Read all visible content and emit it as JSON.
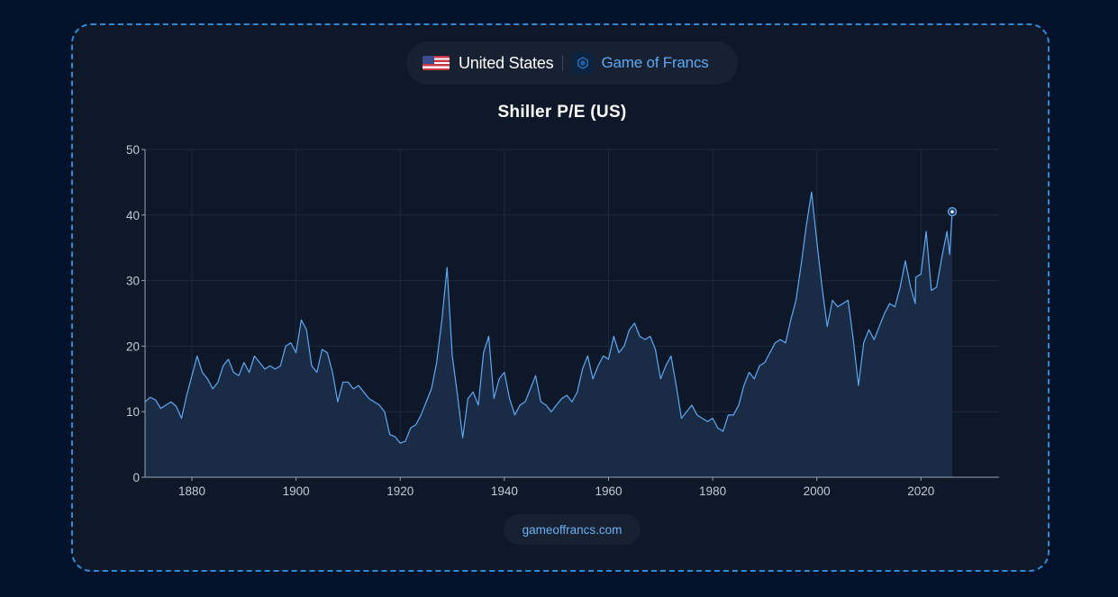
{
  "header": {
    "country": "United States",
    "brand": "Game of Francs"
  },
  "footer": {
    "site": "gameoffrancs.com"
  },
  "colors": {
    "line": "#5ea8f4",
    "area": "#1b2c48",
    "grid": "#1d2a3d",
    "axis": "#9aa4b2",
    "background": "#0e1828"
  },
  "chart_data": {
    "type": "area",
    "title": "Shiller P/E (US)",
    "xlabel": "",
    "ylabel": "",
    "xlim": [
      1871,
      2035
    ],
    "ylim": [
      0,
      50
    ],
    "x_ticks": [
      1880,
      1900,
      1920,
      1940,
      1960,
      1980,
      2000,
      2020
    ],
    "y_ticks": [
      0,
      10,
      20,
      30,
      40,
      50
    ],
    "grid": true,
    "legend": "none",
    "series": [
      {
        "x": [
          1871,
          1872,
          1873,
          1874,
          1875,
          1876,
          1877,
          1878,
          1879,
          1880,
          1881,
          1882,
          1883,
          1884,
          1885,
          1886,
          1887,
          1888,
          1889,
          1890,
          1891,
          1892,
          1893,
          1894,
          1895,
          1896,
          1897,
          1898,
          1899,
          1900,
          1901,
          1902,
          1903,
          1904,
          1905,
          1906,
          1907,
          1908,
          1909,
          1910,
          1911,
          1912,
          1913,
          1914,
          1915,
          1916,
          1917,
          1918,
          1919,
          1920,
          1921,
          1922,
          1923,
          1924,
          1925,
          1926,
          1927,
          1928,
          1929,
          1929.7,
          1930,
          1931,
          1932,
          1932.5,
          1933,
          1934,
          1935,
          1936,
          1937,
          1938,
          1939,
          1940,
          1941,
          1942,
          1943,
          1944,
          1945,
          1946,
          1947,
          1948,
          1949,
          1950,
          1951,
          1952,
          1953,
          1954,
          1955,
          1956,
          1957,
          1958,
          1959,
          1960,
          1961,
          1962,
          1963,
          1964,
          1965,
          1966,
          1967,
          1968,
          1969,
          1970,
          1971,
          1972,
          1973,
          1974,
          1975,
          1976,
          1977,
          1978,
          1979,
          1980,
          1981,
          1982,
          1983,
          1984,
          1985,
          1986,
          1987,
          1988,
          1989,
          1990,
          1991,
          1992,
          1993,
          1994,
          1995,
          1996,
          1997,
          1998,
          1999,
          2000,
          2001,
          2002,
          2003,
          2004,
          2005,
          2006,
          2007,
          2008,
          2009,
          2010,
          2011,
          2012,
          2013,
          2014,
          2015,
          2016,
          2017,
          2018,
          2018.9,
          2019,
          2020,
          2021,
          2022,
          2023,
          2024,
          2025,
          2025.5,
          2026
        ],
        "y": [
          11.5,
          12.2,
          11.8,
          10.5,
          11.0,
          11.5,
          10.8,
          9.0,
          12.5,
          15.5,
          18.5,
          16.0,
          15.0,
          13.5,
          14.5,
          17.0,
          18.0,
          16.0,
          15.5,
          17.5,
          16.0,
          18.5,
          17.5,
          16.5,
          17.0,
          16.5,
          17.0,
          20.0,
          20.5,
          19.0,
          24.0,
          22.5,
          17.0,
          16.0,
          19.5,
          19.0,
          16.0,
          11.5,
          14.5,
          14.5,
          13.5,
          14.0,
          13.0,
          12.0,
          11.5,
          11.0,
          10.0,
          6.5,
          6.2,
          5.2,
          5.5,
          7.5,
          8.0,
          9.5,
          11.5,
          13.5,
          17.5,
          24.0,
          32.0,
          22.5,
          18.5,
          12.5,
          6.0,
          9.0,
          12.0,
          13.0,
          11.0,
          19.0,
          21.5,
          12.0,
          15.0,
          16.0,
          12.0,
          9.5,
          11.0,
          11.5,
          13.5,
          15.5,
          11.5,
          11.0,
          10.0,
          11.0,
          12.0,
          12.5,
          11.5,
          13.0,
          16.5,
          18.5,
          15.0,
          17.0,
          18.5,
          18.0,
          21.5,
          19.0,
          20.0,
          22.5,
          23.5,
          21.5,
          21.0,
          21.5,
          19.5,
          15.0,
          17.0,
          18.5,
          14.0,
          9.0,
          10.0,
          11.0,
          9.5,
          9.0,
          8.5,
          9.0,
          7.5,
          7.0,
          9.5,
          9.5,
          11.0,
          14.0,
          16.0,
          15.0,
          17.0,
          17.5,
          19.0,
          20.5,
          21.0,
          20.5,
          24.0,
          27.0,
          32.5,
          38.5,
          43.5,
          36.0,
          29.0,
          23.0,
          27.0,
          26.0,
          26.5,
          27.0,
          21.0,
          14.0,
          20.5,
          22.5,
          21.0,
          23.0,
          25.0,
          26.5,
          26.0,
          29.0,
          33.0,
          29.0,
          26.5,
          30.5,
          31.0,
          37.5,
          28.5,
          29.0,
          33.5,
          37.5,
          34.0,
          40.5
        ]
      }
    ]
  }
}
